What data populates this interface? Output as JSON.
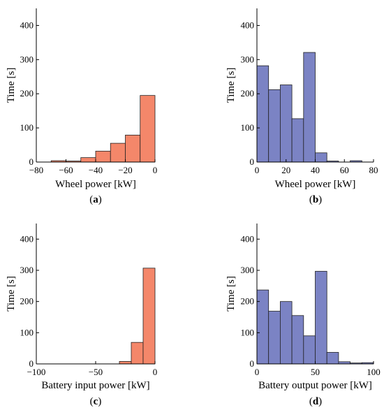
{
  "colors": {
    "negative": "#F4876A",
    "positive": "#7B83C4",
    "edge": "#222222"
  },
  "chart_data": [
    {
      "type": "bar",
      "panel": "(a)",
      "xlabel": "Wheel power [kW]",
      "ylabel": "Time [s]",
      "xlim": [
        -80,
        0
      ],
      "ylim": [
        0,
        450
      ],
      "xticks": [
        -80,
        -60,
        -40,
        -20,
        0
      ],
      "yticks": [
        0,
        100,
        200,
        300,
        400
      ],
      "xtick_labels": [
        "−80",
        "−60",
        "−40",
        "−20",
        "0"
      ],
      "bin_edges": [
        -70,
        -60,
        -50,
        -40,
        -30,
        -20,
        -10,
        0
      ],
      "values": [
        4,
        3,
        13,
        32,
        55,
        79,
        195
      ],
      "color_key": "negative"
    },
    {
      "type": "bar",
      "panel": "(b)",
      "xlabel": "Wheel power [kW]",
      "ylabel": "Time [s]",
      "xlim": [
        0,
        80
      ],
      "ylim": [
        0,
        450
      ],
      "xticks": [
        0,
        20,
        40,
        60,
        80
      ],
      "yticks": [
        0,
        100,
        200,
        300,
        400
      ],
      "xtick_labels": [
        "0",
        "20",
        "40",
        "60",
        "80"
      ],
      "bin_edges": [
        0,
        8,
        16,
        24,
        32,
        40,
        48,
        56,
        64,
        72,
        80
      ],
      "values": [
        282,
        212,
        226,
        127,
        321,
        27,
        3,
        0,
        4,
        0
      ],
      "color_key": "positive"
    },
    {
      "type": "bar",
      "panel": "(c)",
      "xlabel": "Battery input power [kW]",
      "ylabel": "Time [s]",
      "xlim": [
        -100,
        0
      ],
      "ylim": [
        0,
        450
      ],
      "xticks": [
        -100,
        -50,
        0
      ],
      "yticks": [
        0,
        100,
        200,
        300,
        400
      ],
      "xtick_labels": [
        "−100",
        "−50",
        "0"
      ],
      "bin_edges": [
        -30,
        -20,
        -10,
        0
      ],
      "values": [
        8,
        69,
        307
      ],
      "color_key": "negative"
    },
    {
      "type": "bar",
      "panel": "(d)",
      "xlabel": "Battery output power [kW]",
      "ylabel": "Time [s]",
      "xlim": [
        0,
        100
      ],
      "ylim": [
        0,
        450
      ],
      "xticks": [
        0,
        50,
        100
      ],
      "yticks": [
        0,
        100,
        200,
        300,
        400
      ],
      "xtick_labels": [
        "0",
        "50",
        "100"
      ],
      "bin_edges": [
        0,
        10,
        20,
        30,
        40,
        50,
        60,
        70,
        80,
        90,
        100
      ],
      "values": [
        237,
        169,
        200,
        155,
        90,
        297,
        37,
        7,
        3,
        4
      ],
      "color_key": "positive"
    }
  ]
}
